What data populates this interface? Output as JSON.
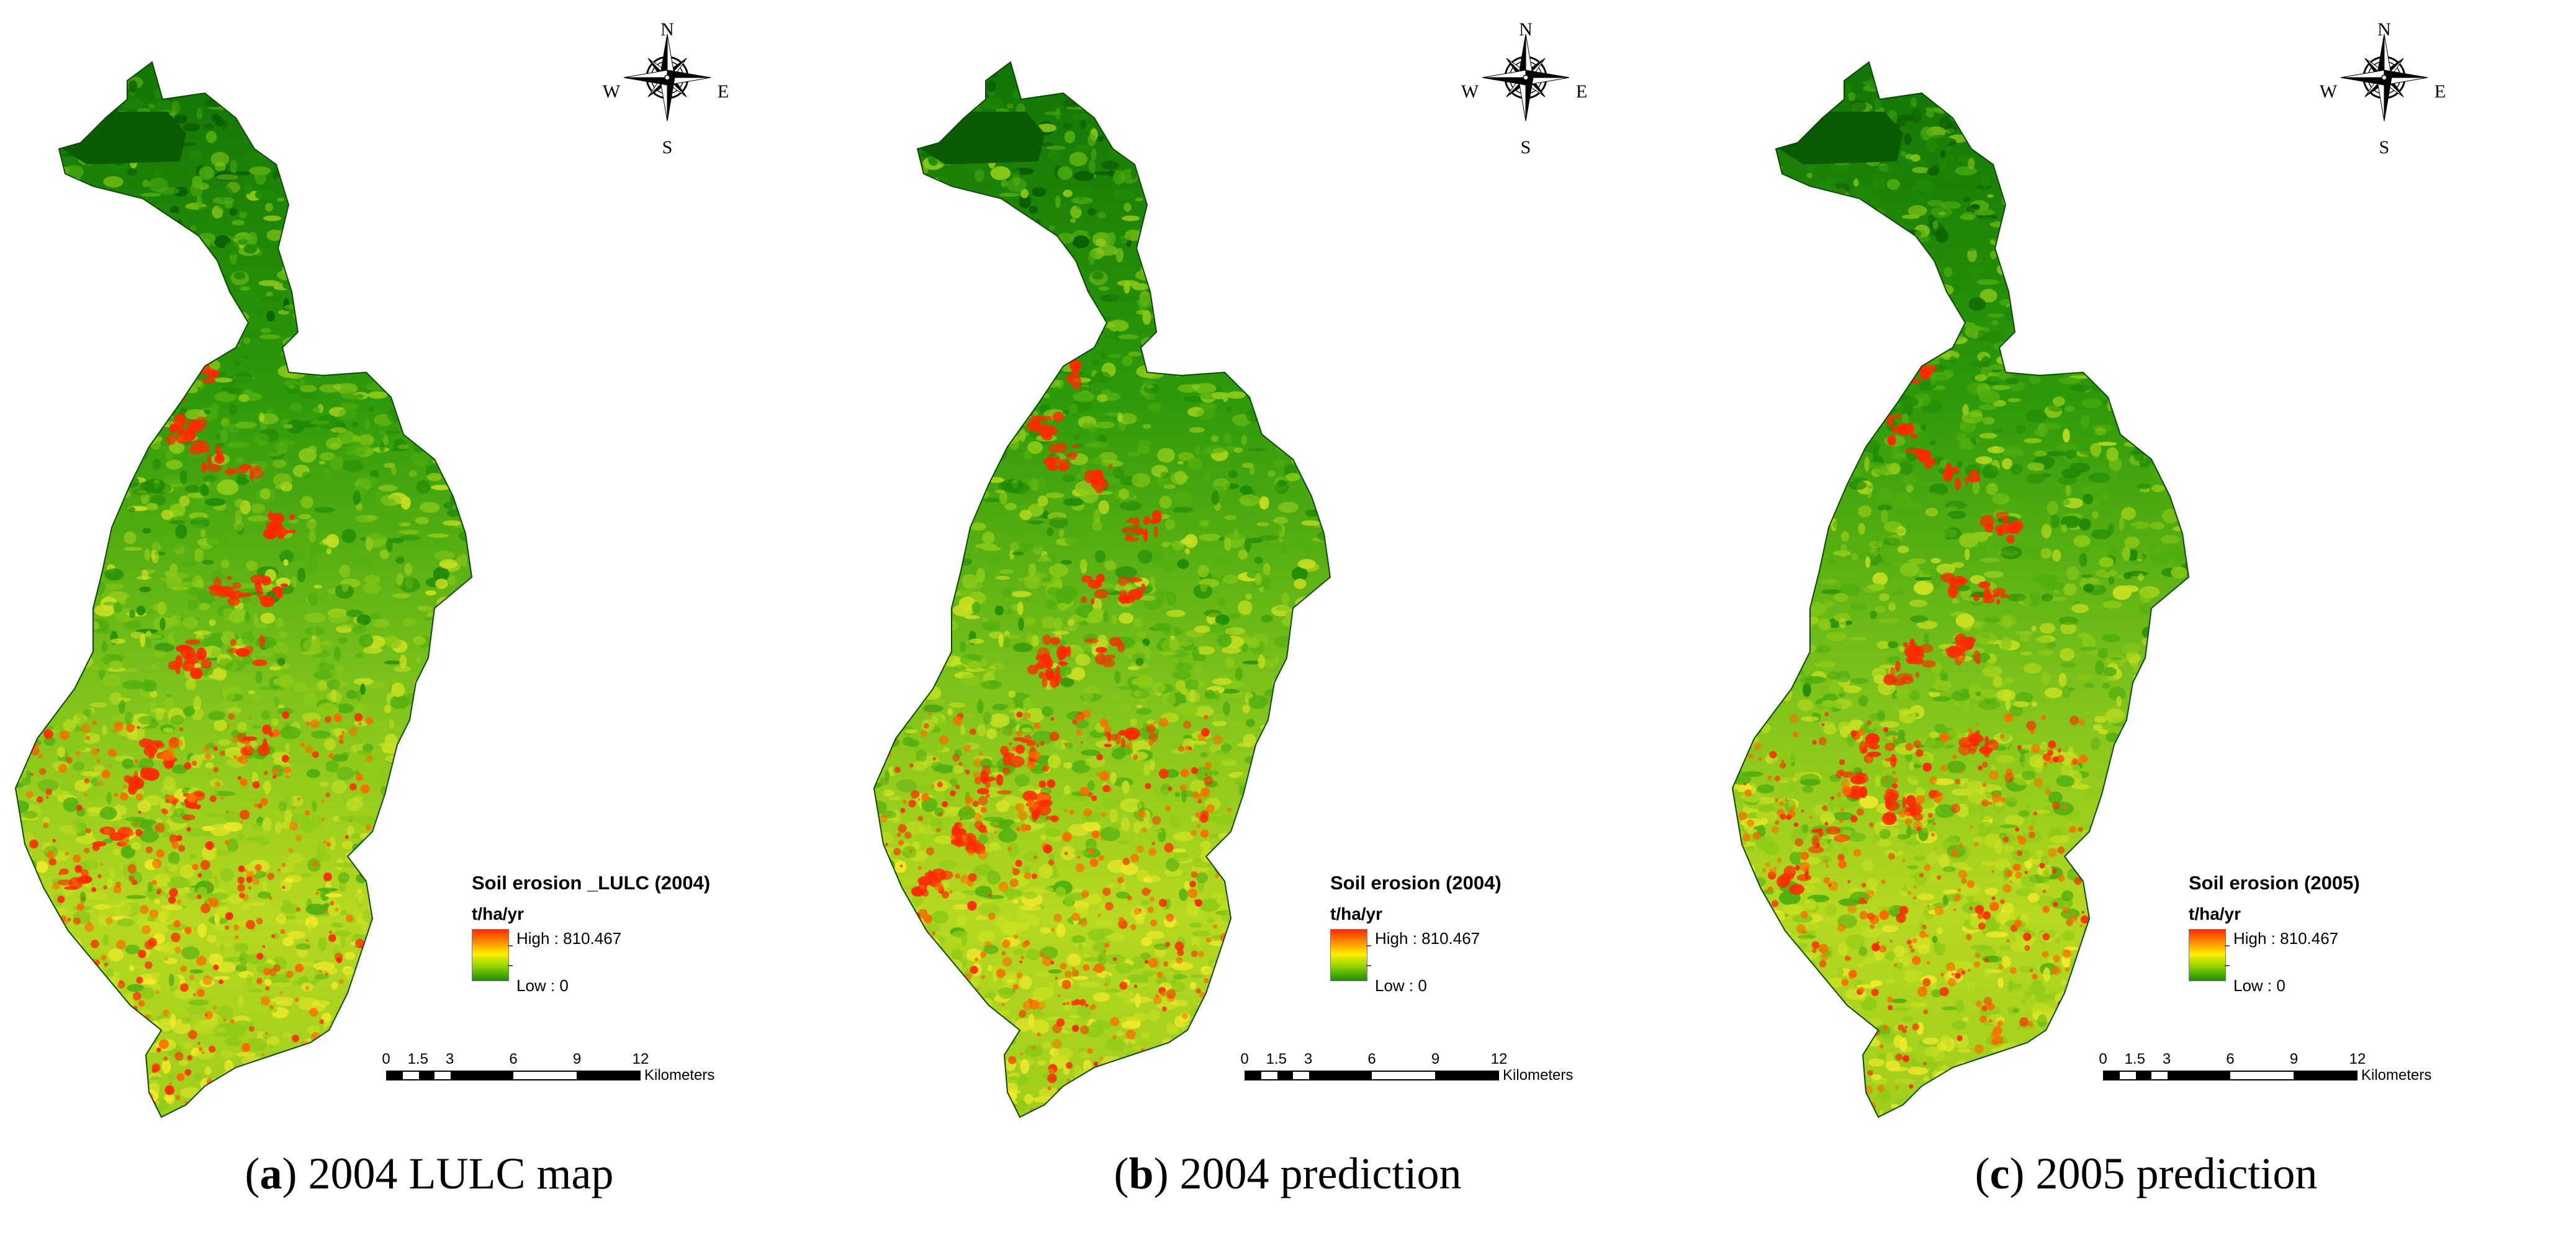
{
  "panels": [
    {
      "legend": {
        "title": "Soil erosion _LULC (2004)",
        "unit": "t/ha/yr",
        "high": "High : 810.467",
        "low": "Low : 0"
      },
      "scale": {
        "ticks": [
          "0",
          "1.5",
          "3",
          "6",
          "9",
          "12"
        ],
        "unit": "Kilometers"
      },
      "compass": {
        "n": "N",
        "s": "S",
        "e": "E",
        "w": "W"
      },
      "caption": {
        "letter": "a",
        "open": "(",
        "close": ")",
        "text": " 2004 LULC map"
      },
      "colors": {
        "high": "#ff2a00",
        "mid": "#ffee00",
        "low": "#1a8f00"
      }
    },
    {
      "legend": {
        "title": "Soil erosion (2004)",
        "unit": "t/ha/yr",
        "high": "High : 810.467",
        "low": "Low : 0"
      },
      "scale": {
        "ticks": [
          "0",
          "1.5",
          "3",
          "6",
          "9",
          "12"
        ],
        "unit": "Kilometers"
      },
      "compass": {
        "n": "N",
        "s": "S",
        "e": "E",
        "w": "W"
      },
      "caption": {
        "letter": "b",
        "open": "(",
        "close": ")",
        "text": " 2004 prediction"
      },
      "colors": {
        "high": "#ff2a00",
        "mid": "#ffee00",
        "low": "#1a8f00"
      }
    },
    {
      "legend": {
        "title": "Soil erosion (2005)",
        "unit": "t/ha/yr",
        "high": "High : 810.467",
        "low": "Low : 0"
      },
      "scale": {
        "ticks": [
          "0",
          "1.5",
          "3",
          "6",
          "9",
          "12"
        ],
        "unit": "Kilometers"
      },
      "compass": {
        "n": "N",
        "s": "S",
        "e": "E",
        "w": "W"
      },
      "caption": {
        "letter": "c",
        "open": "(",
        "close": ")",
        "text": " 2005 prediction"
      },
      "colors": {
        "high": "#ff2a00",
        "mid": "#ffee00",
        "low": "#1a8f00"
      }
    }
  ]
}
